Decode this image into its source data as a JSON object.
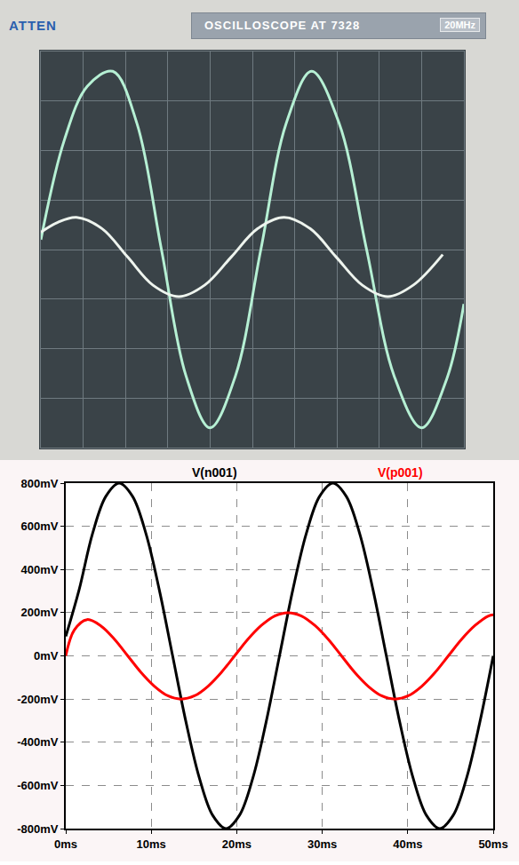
{
  "chart_data": [
    {
      "type": "line",
      "brand": "ATTEN",
      "model": "OSCILLOSCOPE AT 7328",
      "bandwidth": "20MHz",
      "xlim": [
        0,
        10
      ],
      "ylim": [
        -4,
        4
      ],
      "xticks": [
        0,
        1,
        2,
        3,
        4,
        5,
        6,
        7,
        8,
        9,
        10
      ],
      "yticks": [
        -4,
        -3,
        -2,
        -1,
        0,
        1,
        2,
        3,
        4
      ],
      "grid": true,
      "tick_labels": false,
      "series": [
        {
          "color": "#b6f0d4",
          "x": [
            0,
            0.55,
            1.1,
            1.7,
            2.27,
            2.85,
            3.43,
            4.0,
            4.6,
            5.2,
            5.8,
            6.4,
            7.05,
            7.7,
            8.35,
            9.0,
            9.6,
            10
          ],
          "values": [
            0.2,
            2.2,
            3.3,
            3.6,
            2.55,
            0,
            -2.55,
            -3.6,
            -2.55,
            0,
            2.55,
            3.6,
            2.55,
            0,
            -2.55,
            -3.6,
            -2.6,
            -1.1
          ]
        },
        {
          "color": "#eef4ee",
          "x": [
            0,
            0.4,
            0.84,
            1.45,
            2.05,
            2.65,
            3.26,
            3.87,
            4.5,
            5.12,
            5.75,
            6.37,
            6.98,
            7.6,
            8.2,
            8.8,
            9.5
          ],
          "values": [
            0.35,
            0.55,
            0.65,
            0.42,
            -0.15,
            -0.72,
            -0.95,
            -0.72,
            -0.15,
            0.42,
            0.65,
            0.42,
            -0.15,
            -0.72,
            -0.95,
            -0.72,
            -0.1
          ]
        }
      ]
    },
    {
      "type": "line",
      "xlim": [
        0,
        50
      ],
      "ylim": [
        -800,
        800
      ],
      "xticks": [
        {
          "value": 0,
          "label": "0ms"
        },
        {
          "value": 10,
          "label": "10ms"
        },
        {
          "value": 20,
          "label": "20ms"
        },
        {
          "value": 30,
          "label": "30ms"
        },
        {
          "value": 40,
          "label": "40ms"
        },
        {
          "value": 50,
          "label": "50ms"
        }
      ],
      "yticks": [
        {
          "value": -800,
          "label": "-800mV"
        },
        {
          "value": -600,
          "label": "-600mV"
        },
        {
          "value": -400,
          "label": "-400mV"
        },
        {
          "value": -200,
          "label": "-200mV"
        },
        {
          "value": 0,
          "label": "0mV"
        },
        {
          "value": 200,
          "label": "200mV"
        },
        {
          "value": 400,
          "label": "400mV"
        },
        {
          "value": 600,
          "label": "600mV"
        },
        {
          "value": 800,
          "label": "800mV"
        }
      ],
      "grid": true,
      "series": [
        {
          "name": "V(n001)",
          "color": "#000000",
          "x": [
            0,
            1.56,
            3.13,
            4.69,
            6.25,
            7.81,
            9.38,
            10.94,
            12.5,
            14.06,
            15.63,
            17.19,
            18.75,
            20.31,
            21.88,
            23.44,
            25,
            26.56,
            28.13,
            29.69,
            31.25,
            32.81,
            34.38,
            35.94,
            37.5,
            39.06,
            40.63,
            42.19,
            43.75,
            45.31,
            46.88,
            48.44,
            50
          ],
          "values": [
            90,
            306,
            566,
            739,
            800,
            739,
            566,
            306,
            0,
            -306,
            -566,
            -739,
            -800,
            -739,
            -566,
            -306,
            0,
            306,
            566,
            739,
            800,
            739,
            566,
            306,
            0,
            -306,
            -566,
            -739,
            -800,
            -739,
            -566,
            -306,
            0
          ]
        },
        {
          "name": "V(p001)",
          "color": "#ff0000",
          "x": [
            0,
            1.0,
            2.5,
            4.13,
            5.69,
            7.25,
            8.81,
            10.38,
            11.94,
            13.5,
            15.06,
            16.63,
            18.19,
            19.75,
            21.31,
            22.88,
            24.44,
            26,
            27.56,
            29.13,
            30.69,
            32.25,
            33.81,
            35.38,
            36.94,
            38.5,
            40.06,
            41.63,
            43.19,
            44.75,
            46.31,
            47.88,
            49.44,
            50
          ],
          "values": [
            0,
            120,
            168,
            138,
            77,
            0,
            -77,
            -141,
            -185,
            -200,
            -185,
            -141,
            -77,
            0,
            77,
            141,
            185,
            200,
            185,
            141,
            77,
            0,
            -77,
            -141,
            -185,
            -200,
            -185,
            -141,
            -77,
            0,
            77,
            141,
            185,
            190
          ]
        }
      ]
    }
  ]
}
